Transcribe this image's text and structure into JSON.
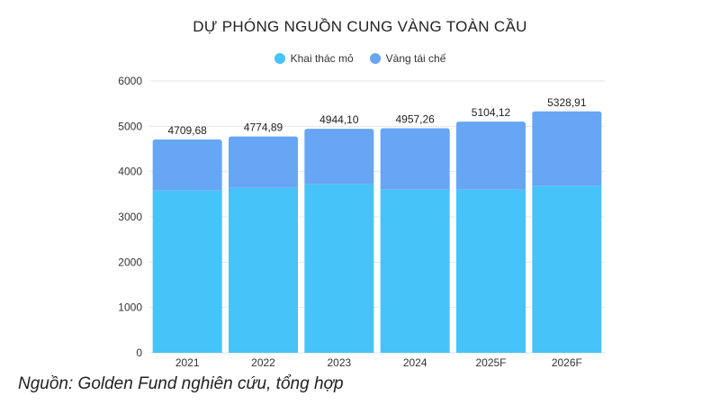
{
  "colors": {
    "mining": "#46C3F8",
    "recycled": "#67A6F4",
    "grid": "#e6e6e6"
  },
  "legend": [
    {
      "label": "Khai thác mỏ",
      "color": "#46C3F8"
    },
    {
      "label": "Vàng tái chế",
      "color": "#67A6F4"
    }
  ],
  "source": "Nguồn: Golden Fund nghiên cứu, tổng hợp",
  "chart_data": {
    "type": "bar",
    "stacked": true,
    "title": "DỰ PHÓNG NGUỒN CUNG VÀNG TOÀN CẦU",
    "categories": [
      "2021",
      "2022",
      "2023",
      "2024",
      "2025F",
      "2026F"
    ],
    "series": [
      {
        "name": "Khai thác mỏ",
        "values": [
          3580,
          3640,
          3720,
          3600,
          3600,
          3680
        ]
      },
      {
        "name": "Vàng tái chế",
        "values": [
          1129.68,
          1134.89,
          1224.1,
          1357.26,
          1504.12,
          1648.91
        ]
      }
    ],
    "totals": [
      4709.68,
      4774.89,
      4944.1,
      4957.26,
      5104.12,
      5328.91
    ],
    "total_labels": [
      "4709,68",
      "4774,89",
      "4944,10",
      "4957,26",
      "5104,12",
      "5328,91"
    ],
    "ylim": [
      0,
      6000
    ],
    "yticks": [
      0,
      1000,
      2000,
      3000,
      4000,
      5000,
      6000
    ],
    "grid": true,
    "legend_position": "top-center"
  }
}
